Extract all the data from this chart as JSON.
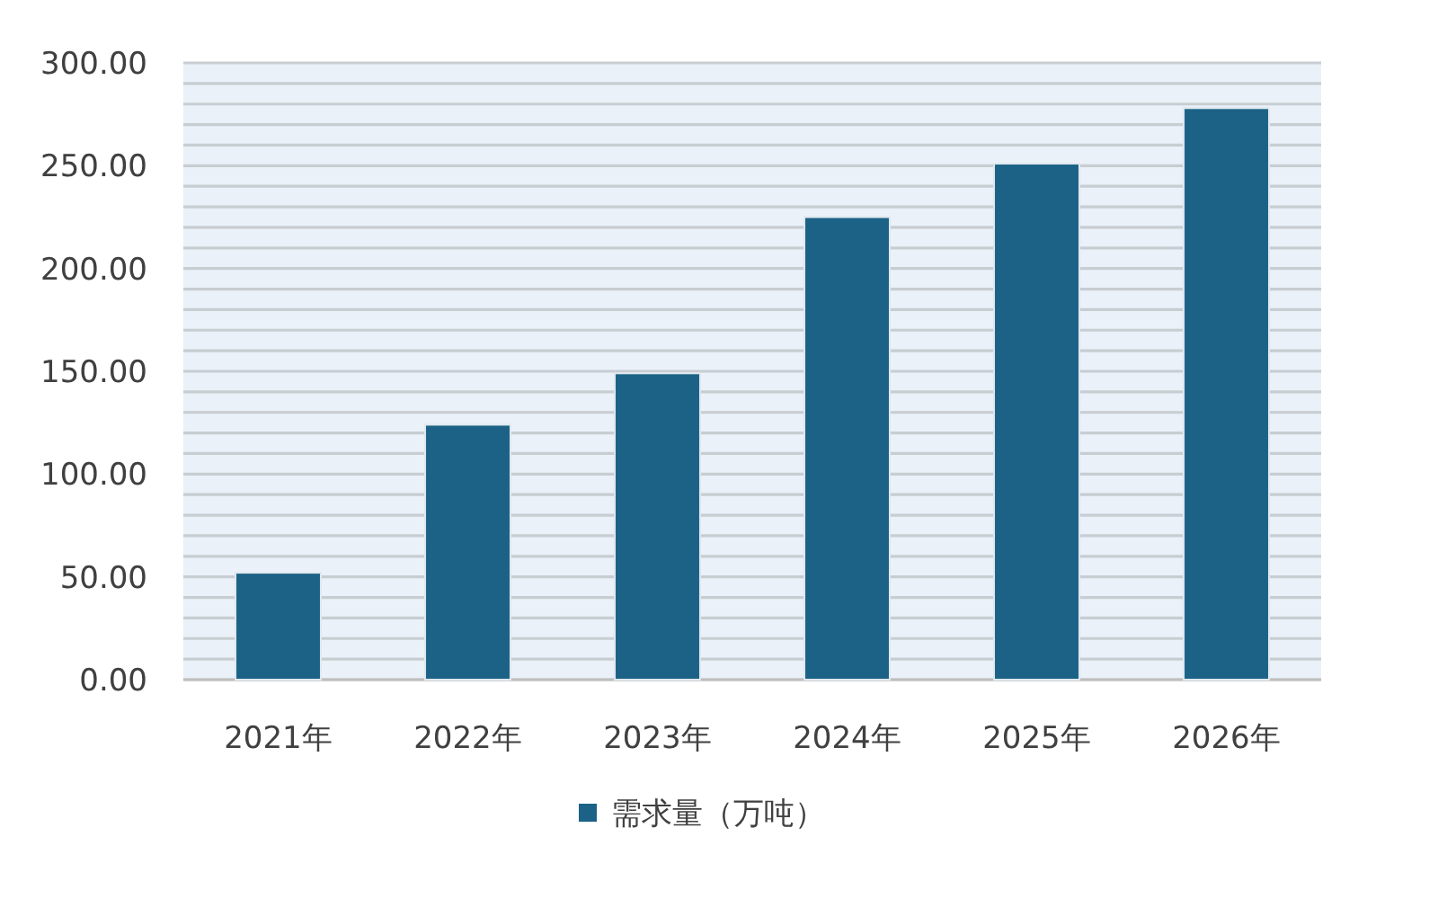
{
  "chart_data": {
    "type": "bar",
    "categories": [
      "2021年",
      "2022年",
      "2023年",
      "2024年",
      "2025年",
      "2026年"
    ],
    "series": [
      {
        "name": "需求量（万吨）",
        "color": "#1b6286",
        "values": [
          52,
          124,
          149,
          225,
          251,
          278
        ]
      }
    ],
    "ylim": [
      0,
      300
    ],
    "yticks": [
      {
        "value": 0,
        "label": "0.00"
      },
      {
        "value": 10,
        "label": null
      },
      {
        "value": 20,
        "label": null
      },
      {
        "value": 30,
        "label": null
      },
      {
        "value": 40,
        "label": null
      },
      {
        "value": 50,
        "label": "50.00"
      },
      {
        "value": 60,
        "label": null
      },
      {
        "value": 70,
        "label": null
      },
      {
        "value": 80,
        "label": null
      },
      {
        "value": 90,
        "label": null
      },
      {
        "value": 100,
        "label": "100.00"
      },
      {
        "value": 110,
        "label": null
      },
      {
        "value": 120,
        "label": null
      },
      {
        "value": 130,
        "label": null
      },
      {
        "value": 140,
        "label": null
      },
      {
        "value": 150,
        "label": "150.00"
      },
      {
        "value": 160,
        "label": null
      },
      {
        "value": 170,
        "label": null
      },
      {
        "value": 180,
        "label": null
      },
      {
        "value": 190,
        "label": null
      },
      {
        "value": 200,
        "label": "200.00"
      },
      {
        "value": 210,
        "label": null
      },
      {
        "value": 220,
        "label": null
      },
      {
        "value": 230,
        "label": null
      },
      {
        "value": 240,
        "label": null
      },
      {
        "value": 250,
        "label": "250.00"
      },
      {
        "value": 260,
        "label": null
      },
      {
        "value": 270,
        "label": null
      },
      {
        "value": 280,
        "label": null
      },
      {
        "value": 290,
        "label": null
      },
      {
        "value": 300,
        "label": "300.00"
      }
    ],
    "grid": "y",
    "legend": "bottom"
  }
}
